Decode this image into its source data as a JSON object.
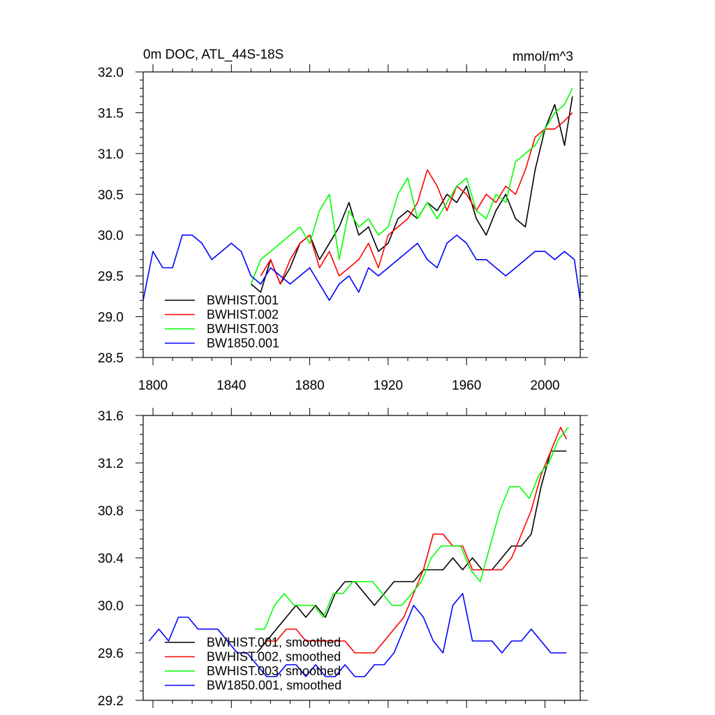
{
  "chart_data": [
    {
      "type": "line",
      "title": "0m DOC, ATL_44S-18S",
      "units": "mmol/m^3",
      "xlabel": "",
      "ylabel": "",
      "xlim": [
        1795,
        2018
      ],
      "ylim": [
        28.5,
        32.0
      ],
      "xticks": [
        1800,
        1840,
        1880,
        1920,
        1960,
        2000
      ],
      "xtick_labels": [
        "1800",
        "1840",
        "1880",
        "1920",
        "1960",
        "2000"
      ],
      "yticks": [
        28.5,
        29.0,
        29.5,
        30.0,
        30.5,
        31.0,
        31.5,
        32.0
      ],
      "ytick_labels": [
        "28.5",
        "29.0",
        "29.5",
        "30.0",
        "30.5",
        "31.0",
        "31.5",
        "32.0"
      ],
      "legend_position": "bottom-left",
      "series": [
        {
          "name": "BWHIST.001",
          "color": "#000000",
          "x": [
            1850,
            1855,
            1860,
            1865,
            1870,
            1875,
            1880,
            1885,
            1890,
            1895,
            1900,
            1905,
            1910,
            1915,
            1920,
            1925,
            1930,
            1935,
            1940,
            1945,
            1950,
            1955,
            1960,
            1965,
            1970,
            1975,
            1980,
            1985,
            1990,
            1995,
            2000,
            2005,
            2010,
            2014
          ],
          "values": [
            29.4,
            29.3,
            29.7,
            29.4,
            29.6,
            29.9,
            30.0,
            29.7,
            29.9,
            30.1,
            30.4,
            30.0,
            30.1,
            29.8,
            29.9,
            30.2,
            30.3,
            30.2,
            30.4,
            30.3,
            30.5,
            30.4,
            30.6,
            30.2,
            30.0,
            30.3,
            30.5,
            30.2,
            30.1,
            30.8,
            31.3,
            31.6,
            31.1,
            31.7
          ]
        },
        {
          "name": "BWHIST.002",
          "color": "#ff0000",
          "x": [
            1855,
            1860,
            1865,
            1870,
            1875,
            1880,
            1885,
            1890,
            1895,
            1900,
            1905,
            1910,
            1915,
            1920,
            1925,
            1930,
            1935,
            1940,
            1945,
            1950,
            1955,
            1960,
            1965,
            1970,
            1975,
            1980,
            1985,
            1990,
            1995,
            2000,
            2005,
            2010,
            2014
          ],
          "values": [
            29.5,
            29.7,
            29.4,
            29.7,
            29.9,
            30.0,
            29.6,
            29.8,
            29.5,
            29.6,
            29.7,
            29.9,
            29.6,
            30.0,
            30.1,
            30.2,
            30.4,
            30.8,
            30.6,
            30.3,
            30.6,
            30.5,
            30.3,
            30.5,
            30.4,
            30.6,
            30.5,
            30.8,
            31.2,
            31.3,
            31.3,
            31.4,
            31.5
          ]
        },
        {
          "name": "BWHIST.003",
          "color": "#00ff00",
          "x": [
            1850,
            1855,
            1860,
            1865,
            1870,
            1875,
            1880,
            1885,
            1890,
            1895,
            1900,
            1905,
            1910,
            1915,
            1920,
            1925,
            1930,
            1935,
            1940,
            1945,
            1950,
            1955,
            1960,
            1965,
            1970,
            1975,
            1980,
            1985,
            1990,
            1995,
            2000,
            2005,
            2010,
            2014
          ],
          "values": [
            29.4,
            29.7,
            29.8,
            29.9,
            30.0,
            30.1,
            29.9,
            30.3,
            30.5,
            29.7,
            30.3,
            30.1,
            30.2,
            30.0,
            30.1,
            30.5,
            30.7,
            30.2,
            30.4,
            30.2,
            30.4,
            30.6,
            30.7,
            30.3,
            30.2,
            30.5,
            30.4,
            30.9,
            31.0,
            31.1,
            31.3,
            31.5,
            31.6,
            31.8
          ]
        },
        {
          "name": "BW1850.001",
          "color": "#0000ff",
          "x": [
            1795,
            1800,
            1805,
            1810,
            1815,
            1820,
            1825,
            1830,
            1835,
            1840,
            1845,
            1850,
            1855,
            1860,
            1865,
            1870,
            1875,
            1880,
            1885,
            1890,
            1895,
            1900,
            1905,
            1910,
            1915,
            1920,
            1925,
            1930,
            1935,
            1940,
            1945,
            1950,
            1955,
            1960,
            1965,
            1970,
            1975,
            1980,
            1985,
            1990,
            1995,
            2000,
            2005,
            2010,
            2015,
            2018
          ],
          "values": [
            29.2,
            29.8,
            29.6,
            29.6,
            30.0,
            30.0,
            29.9,
            29.7,
            29.8,
            29.9,
            29.8,
            29.5,
            29.4,
            29.6,
            29.5,
            29.4,
            29.5,
            29.6,
            29.4,
            29.2,
            29.4,
            29.5,
            29.3,
            29.6,
            29.5,
            29.6,
            29.7,
            29.8,
            29.9,
            29.7,
            29.6,
            29.9,
            30.0,
            29.9,
            29.7,
            29.7,
            29.6,
            29.5,
            29.6,
            29.7,
            29.8,
            29.8,
            29.7,
            29.8,
            29.7,
            29.2
          ]
        }
      ]
    },
    {
      "type": "line",
      "title": "",
      "xlabel": "",
      "ylabel": "",
      "xlim": [
        1795,
        2018
      ],
      "ylim": [
        29.2,
        31.6
      ],
      "xticks": [
        1800,
        1840,
        1880,
        1920,
        1960,
        2000
      ],
      "yticks": [
        29.2,
        29.6,
        30.0,
        30.4,
        30.8,
        31.2,
        31.6
      ],
      "ytick_labels": [
        "29.2",
        "29.6",
        "30.0",
        "30.4",
        "30.8",
        "31.2",
        "31.6"
      ],
      "legend_position": "bottom-left",
      "series": [
        {
          "name": "BWHIST.001, smoothed",
          "color": "#000000",
          "x": [
            1853,
            1858,
            1863,
            1868,
            1873,
            1878,
            1883,
            1888,
            1893,
            1898,
            1903,
            1908,
            1913,
            1918,
            1923,
            1928,
            1933,
            1938,
            1943,
            1948,
            1953,
            1958,
            1963,
            1968,
            1973,
            1978,
            1983,
            1988,
            1993,
            1998,
            2003,
            2008,
            2011
          ],
          "values": [
            29.6,
            29.7,
            29.8,
            29.9,
            30.0,
            29.9,
            30.0,
            29.9,
            30.1,
            30.2,
            30.2,
            30.1,
            30.0,
            30.1,
            30.2,
            30.2,
            30.2,
            30.3,
            30.3,
            30.3,
            30.4,
            30.3,
            30.4,
            30.3,
            30.3,
            30.4,
            30.5,
            30.5,
            30.6,
            31.0,
            31.3,
            31.3,
            31.3
          ]
        },
        {
          "name": "BWHIST.002, smoothed",
          "color": "#ff0000",
          "x": [
            1858,
            1863,
            1868,
            1873,
            1878,
            1883,
            1888,
            1893,
            1898,
            1903,
            1908,
            1913,
            1918,
            1923,
            1928,
            1933,
            1938,
            1943,
            1948,
            1953,
            1958,
            1963,
            1968,
            1973,
            1978,
            1983,
            1988,
            1993,
            1998,
            2003,
            2008,
            2011
          ],
          "values": [
            29.7,
            29.7,
            29.8,
            29.8,
            29.7,
            29.7,
            29.7,
            29.7,
            29.7,
            29.6,
            29.6,
            29.6,
            29.7,
            29.8,
            29.9,
            30.1,
            30.3,
            30.6,
            30.6,
            30.5,
            30.5,
            30.3,
            30.3,
            30.3,
            30.3,
            30.4,
            30.6,
            30.8,
            31.1,
            31.3,
            31.5,
            31.4
          ]
        },
        {
          "name": "BWHIST.003, smoothed",
          "color": "#00ff00",
          "x": [
            1852,
            1857,
            1862,
            1867,
            1872,
            1877,
            1882,
            1887,
            1892,
            1897,
            1902,
            1907,
            1912,
            1917,
            1922,
            1927,
            1932,
            1937,
            1942,
            1947,
            1952,
            1957,
            1962,
            1967,
            1972,
            1977,
            1982,
            1987,
            1992,
            1997,
            2002,
            2007,
            2012
          ],
          "values": [
            29.8,
            29.8,
            30.0,
            30.1,
            30.0,
            30.0,
            30.0,
            29.9,
            30.1,
            30.1,
            30.2,
            30.2,
            30.2,
            30.1,
            30.0,
            30.0,
            30.1,
            30.2,
            30.4,
            30.5,
            30.5,
            30.5,
            30.3,
            30.2,
            30.5,
            30.8,
            31.0,
            31.0,
            30.9,
            31.1,
            31.2,
            31.4,
            31.5
          ]
        },
        {
          "name": "BW1850.001, smoothed",
          "color": "#0000ff",
          "x": [
            1798,
            1803,
            1808,
            1813,
            1818,
            1823,
            1828,
            1833,
            1838,
            1843,
            1848,
            1853,
            1858,
            1863,
            1868,
            1873,
            1878,
            1883,
            1888,
            1893,
            1898,
            1903,
            1908,
            1913,
            1918,
            1923,
            1928,
            1933,
            1938,
            1943,
            1948,
            1953,
            1958,
            1963,
            1968,
            1973,
            1978,
            1983,
            1988,
            1993,
            1998,
            2003,
            2008,
            2011
          ],
          "values": [
            29.7,
            29.8,
            29.7,
            29.9,
            29.9,
            29.8,
            29.8,
            29.8,
            29.7,
            29.6,
            29.6,
            29.5,
            29.4,
            29.4,
            29.5,
            29.5,
            29.4,
            29.5,
            29.4,
            29.4,
            29.5,
            29.4,
            29.4,
            29.5,
            29.5,
            29.6,
            29.8,
            30.0,
            29.9,
            29.7,
            29.6,
            30.0,
            30.1,
            29.7,
            29.7,
            29.7,
            29.6,
            29.7,
            29.7,
            29.8,
            29.7,
            29.6,
            29.6,
            29.6
          ]
        }
      ]
    }
  ]
}
